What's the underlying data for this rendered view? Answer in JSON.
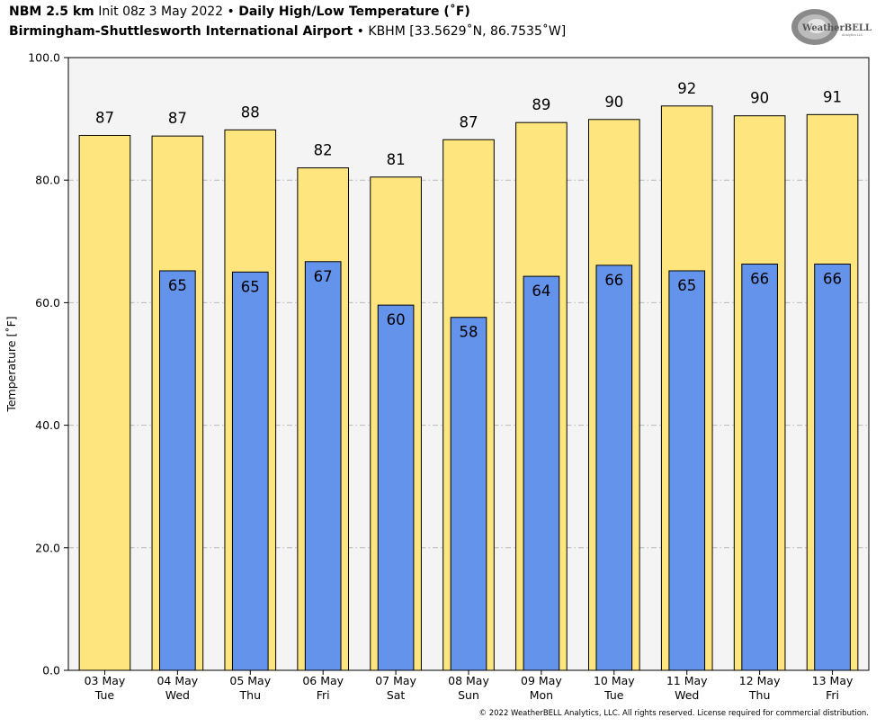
{
  "header": {
    "line1": {
      "model": "NBM 2.5 km",
      "init": " Init 08z 3 May 2022 • ",
      "product": "Daily High/Low Temperature (˚F)"
    },
    "line2": {
      "station": "Birmingham-Shuttlesworth International Airport",
      "detail": " • KBHM [33.5629˚N, 86.7535˚W]"
    }
  },
  "logo": {
    "brand_text": "WeatherBELL",
    "subtext": "Analytics LLC"
  },
  "copyright": "© 2022 WeatherBELL Analytics, LLC. All rights reserved. License required for commercial distribution.",
  "colors": {
    "high_bar": "#FFE57D",
    "low_bar": "#6493EB",
    "plot_bg": "#F4F4F4",
    "grid": "#B8B8B8"
  },
  "chart_data": {
    "type": "bar",
    "ylabel": "Temperature [˚F]",
    "ylim": [
      0,
      100
    ],
    "yticks": [
      "0.0",
      "20.0",
      "40.0",
      "60.0",
      "80.0",
      "100.0"
    ],
    "grid": "horizontal dashed",
    "categories": [
      "03 May|Tue",
      "04 May|Wed",
      "05 May|Thu",
      "06 May|Fri",
      "07 May|Sat",
      "08 May|Sun",
      "09 May|Mon",
      "10 May|Tue",
      "11 May|Wed",
      "12 May|Thu",
      "13 May|Fri"
    ],
    "series": [
      {
        "values": [
          87.3,
          87.2,
          88.2,
          82.0,
          80.5,
          86.6,
          89.4,
          89.9,
          92.1,
          90.5,
          90.7
        ],
        "labels": [
          "87",
          "87",
          "88",
          "82",
          "81",
          "87",
          "89",
          "90",
          "92",
          "90",
          "91"
        ]
      },
      {
        "values": [
          null,
          65.2,
          65.0,
          66.7,
          59.6,
          57.6,
          64.3,
          66.1,
          65.2,
          66.3,
          66.3
        ],
        "labels": [
          "",
          "65",
          "65",
          "67",
          "60",
          "58",
          "64",
          "66",
          "65",
          "66",
          "66"
        ]
      }
    ]
  }
}
